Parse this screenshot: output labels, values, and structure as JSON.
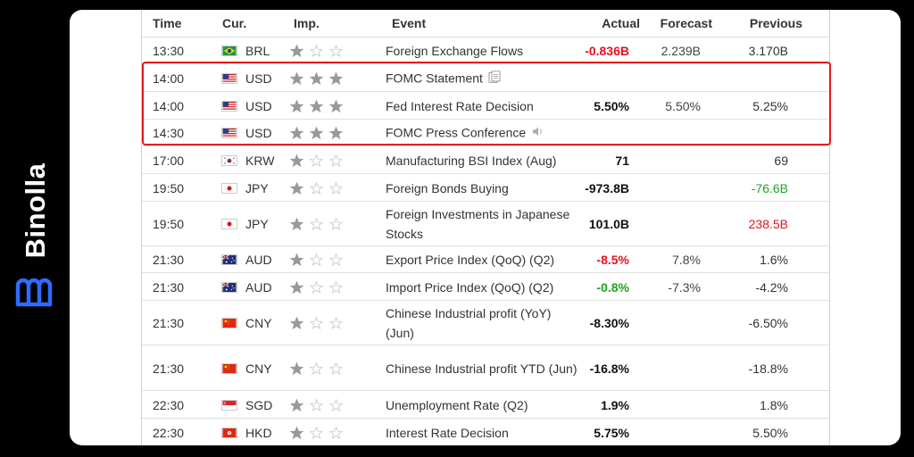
{
  "brand": {
    "name": "Binolla"
  },
  "header": {
    "time": "Time",
    "cur": "Cur.",
    "imp": "Imp.",
    "event": "Event",
    "actual": "Actual",
    "forecast": "Forecast",
    "previous": "Previous"
  },
  "colors": {
    "highlight": "#e21b1b",
    "negative": "#e8101e",
    "positive": "#1ea51e",
    "star_filled": "#999999",
    "star_empty": "#cfcfcf"
  },
  "rows": [
    {
      "time": "13:30",
      "flag": "brazil-flag-icon",
      "cur": "BRL",
      "imp": 1,
      "event": "Foreign Exchange Flows",
      "actual": "-0.836B",
      "actual_color": "negative",
      "forecast": "2.239B",
      "previous": "3.170B",
      "prev_color": ""
    },
    {
      "time": "14:00",
      "flag": "usa-flag-icon",
      "cur": "USD",
      "imp": 3,
      "event": "FOMC Statement",
      "event_icon": "document-icon",
      "actual": "",
      "forecast": "",
      "previous": ""
    },
    {
      "time": "14:00",
      "flag": "usa-flag-icon",
      "cur": "USD",
      "imp": 3,
      "event": "Fed Interest Rate Decision",
      "actual": "5.50%",
      "forecast": "5.50%",
      "previous": "5.25%"
    },
    {
      "time": "14:30",
      "flag": "usa-flag-icon",
      "cur": "USD",
      "imp": 3,
      "event": "FOMC Press Conference",
      "event_icon": "speaker-icon",
      "actual": "",
      "forecast": "",
      "previous": ""
    },
    {
      "time": "17:00",
      "flag": "south-korea-flag-icon",
      "cur": "KRW",
      "imp": 1,
      "event": "Manufacturing BSI Index (Aug)",
      "actual": "71",
      "forecast": "",
      "previous": "69"
    },
    {
      "time": "19:50",
      "flag": "japan-flag-icon",
      "cur": "JPY",
      "imp": 1,
      "event": "Foreign Bonds Buying",
      "actual": "-973.8B",
      "forecast": "",
      "previous": "-76.6B",
      "prev_color": "positive"
    },
    {
      "time": "19:50",
      "flag": "japan-flag-icon",
      "cur": "JPY",
      "imp": 1,
      "event": "Foreign Investments in Japanese Stocks",
      "actual": "101.0B",
      "forecast": "",
      "previous": "238.5B",
      "prev_color": "negative"
    },
    {
      "time": "21:30",
      "flag": "australia-flag-icon",
      "cur": "AUD",
      "imp": 1,
      "event": "Export Price Index (QoQ) (Q2)",
      "actual": "-8.5%",
      "actual_color": "negative",
      "forecast": "7.8%",
      "previous": "1.6%"
    },
    {
      "time": "21:30",
      "flag": "australia-flag-icon",
      "cur": "AUD",
      "imp": 1,
      "event": "Import Price Index (QoQ) (Q2)",
      "actual": "-0.8%",
      "actual_color": "positive",
      "forecast": "-7.3%",
      "previous": "-4.2%"
    },
    {
      "time": "21:30",
      "flag": "china-flag-icon",
      "cur": "CNY",
      "imp": 1,
      "event": "Chinese Industrial profit (YoY) (Jun)",
      "actual": "-8.30%",
      "forecast": "",
      "previous": "-6.50%"
    },
    {
      "time": "21:30",
      "flag": "china-flag-icon",
      "cur": "CNY",
      "imp": 1,
      "event": "Chinese Industrial profit YTD (Jun)",
      "actual": "-16.8%",
      "forecast": "",
      "previous": "-18.8%"
    },
    {
      "time": "22:30",
      "flag": "singapore-flag-icon",
      "cur": "SGD",
      "imp": 1,
      "event": "Unemployment Rate (Q2)",
      "actual": "1.9%",
      "forecast": "",
      "previous": "1.8%"
    },
    {
      "time": "22:30",
      "flag": "hong-kong-flag-icon",
      "cur": "HKD",
      "imp": 1,
      "event": "Interest Rate Decision",
      "actual": "5.75%",
      "forecast": "",
      "previous": "5.50%"
    }
  ]
}
